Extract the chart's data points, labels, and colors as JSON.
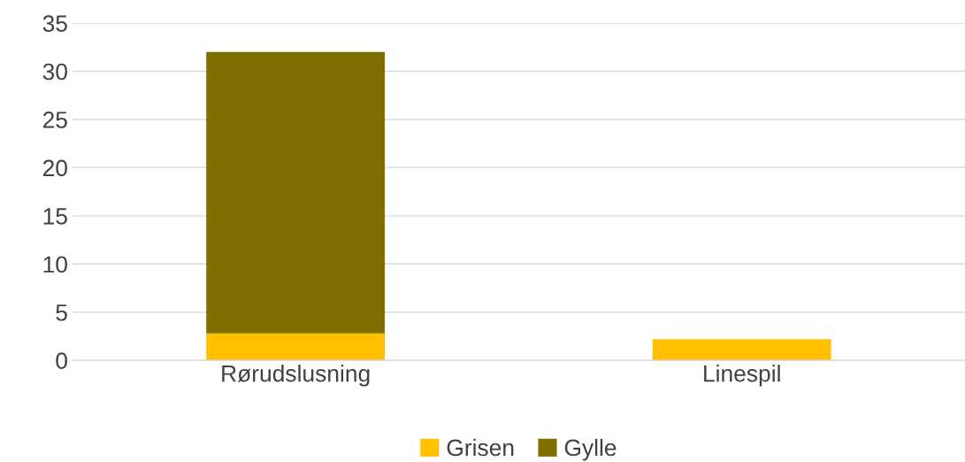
{
  "chart_data": {
    "type": "bar",
    "stacked": true,
    "categories": [
      "Rørudslusning",
      "Linespil"
    ],
    "series": [
      {
        "name": "Grisen",
        "color": "#ffc000",
        "values": [
          2.8,
          2.2
        ]
      },
      {
        "name": "Gylle",
        "color": "#7f6f00",
        "values": [
          29.2,
          0
        ]
      }
    ],
    "ylim": [
      0,
      35
    ],
    "yticks": [
      0,
      5,
      10,
      15,
      20,
      25,
      30,
      35
    ],
    "grid": "y",
    "legend": "bottom"
  }
}
